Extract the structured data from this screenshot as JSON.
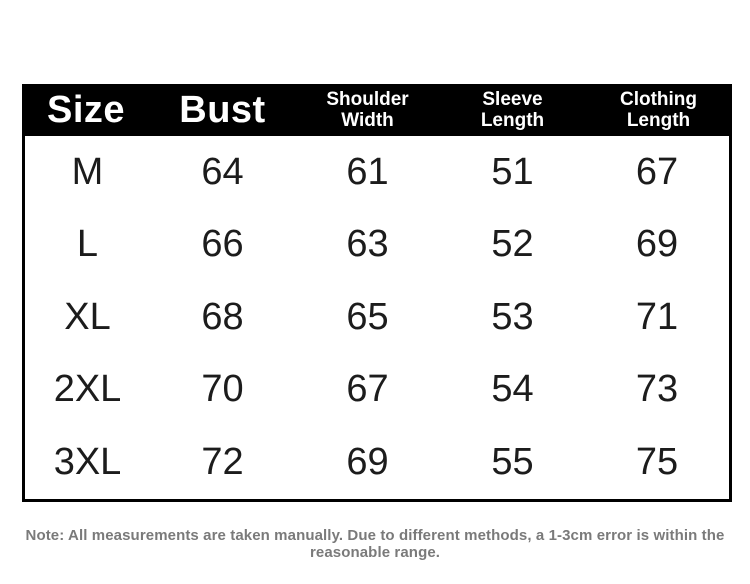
{
  "table": {
    "columns": {
      "size": "Size",
      "bust": "Bust",
      "shoulder_width": "Shoulder\nWidth",
      "sleeve_length": "Sleeve\nLength",
      "clothing_length": "Clothing\nLength"
    },
    "rows": [
      {
        "size": "M",
        "bust": "64",
        "shoulder_width": "61",
        "sleeve_length": "51",
        "clothing_length": "67"
      },
      {
        "size": "L",
        "bust": "66",
        "shoulder_width": "63",
        "sleeve_length": "52",
        "clothing_length": "69"
      },
      {
        "size": "XL",
        "bust": "68",
        "shoulder_width": "65",
        "sleeve_length": "53",
        "clothing_length": "71"
      },
      {
        "size": "2XL",
        "bust": "70",
        "shoulder_width": "67",
        "sleeve_length": "54",
        "clothing_length": "73"
      },
      {
        "size": "3XL",
        "bust": "72",
        "shoulder_width": "69",
        "sleeve_length": "55",
        "clothing_length": "75"
      }
    ]
  },
  "note": "Note: All measurements are taken manually. Due to different methods, a 1-3cm error is within the reasonable range.",
  "colors": {
    "header_bg": "#000000",
    "header_text": "#ffffff",
    "body_text": "#1c1c1c",
    "border": "#000000",
    "note_text": "#7a7a7a"
  }
}
